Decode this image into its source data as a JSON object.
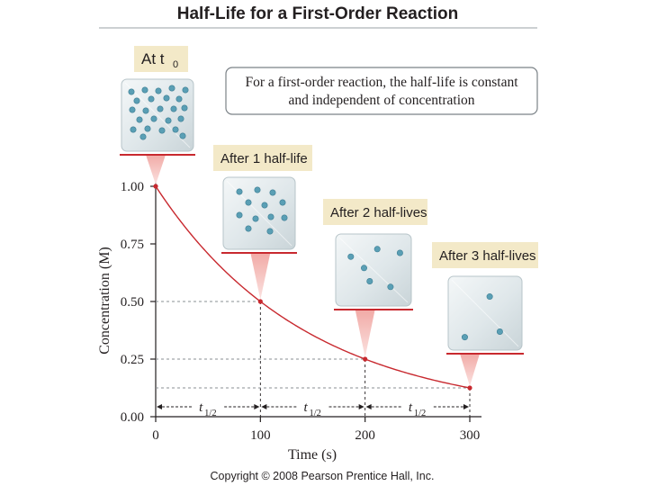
{
  "chart_data": {
    "type": "line",
    "title": "Half-Life for a First-Order Reaction",
    "xlabel": "Time (s)",
    "ylabel": "Concentration (M)",
    "xlim": [
      0,
      300
    ],
    "ylim": [
      0,
      1
    ],
    "x_ticks": [
      "0",
      "100",
      "200",
      "300"
    ],
    "y_ticks": [
      "0.00",
      "0.25",
      "0.50",
      "0.75",
      "1.00"
    ],
    "x_tick_values": [
      0,
      100,
      200,
      300
    ],
    "y_tick_values": [
      0,
      0.25,
      0.5,
      0.75,
      1.0
    ],
    "series": [
      {
        "name": "Concentration",
        "x": [
          0,
          100,
          200,
          300
        ],
        "values": [
          1.0,
          0.5,
          0.25,
          0.125
        ]
      }
    ],
    "half_life_s": 100,
    "half_life_label": "t",
    "half_life_subscript": "1/2",
    "note": "For a first-order reaction, the half-life is constant and independent of concentration",
    "note_lines": [
      "For a first-order reaction, the half-life is constant",
      "and independent of concentration"
    ],
    "annotations": [
      {
        "label": "At t",
        "subscript": "0",
        "x": 0,
        "molecules": 24
      },
      {
        "label": "After 1 half-life",
        "x": 100,
        "molecules": 12
      },
      {
        "label": "After 2 half-lives",
        "x": 200,
        "molecules": 6
      },
      {
        "label": "After 3 half-lives",
        "x": 300,
        "molecules": 3
      }
    ],
    "copyright": "Copyright © 2008 Pearson Prentice Hall, Inc."
  },
  "colors": {
    "curve": "#c8292f",
    "dot": "#5a9fb5",
    "box_face": "#dde6e9",
    "box_edge": "#b7c4c9",
    "label_bg": "#f3e9c8",
    "rule": "#9aa1a6"
  }
}
